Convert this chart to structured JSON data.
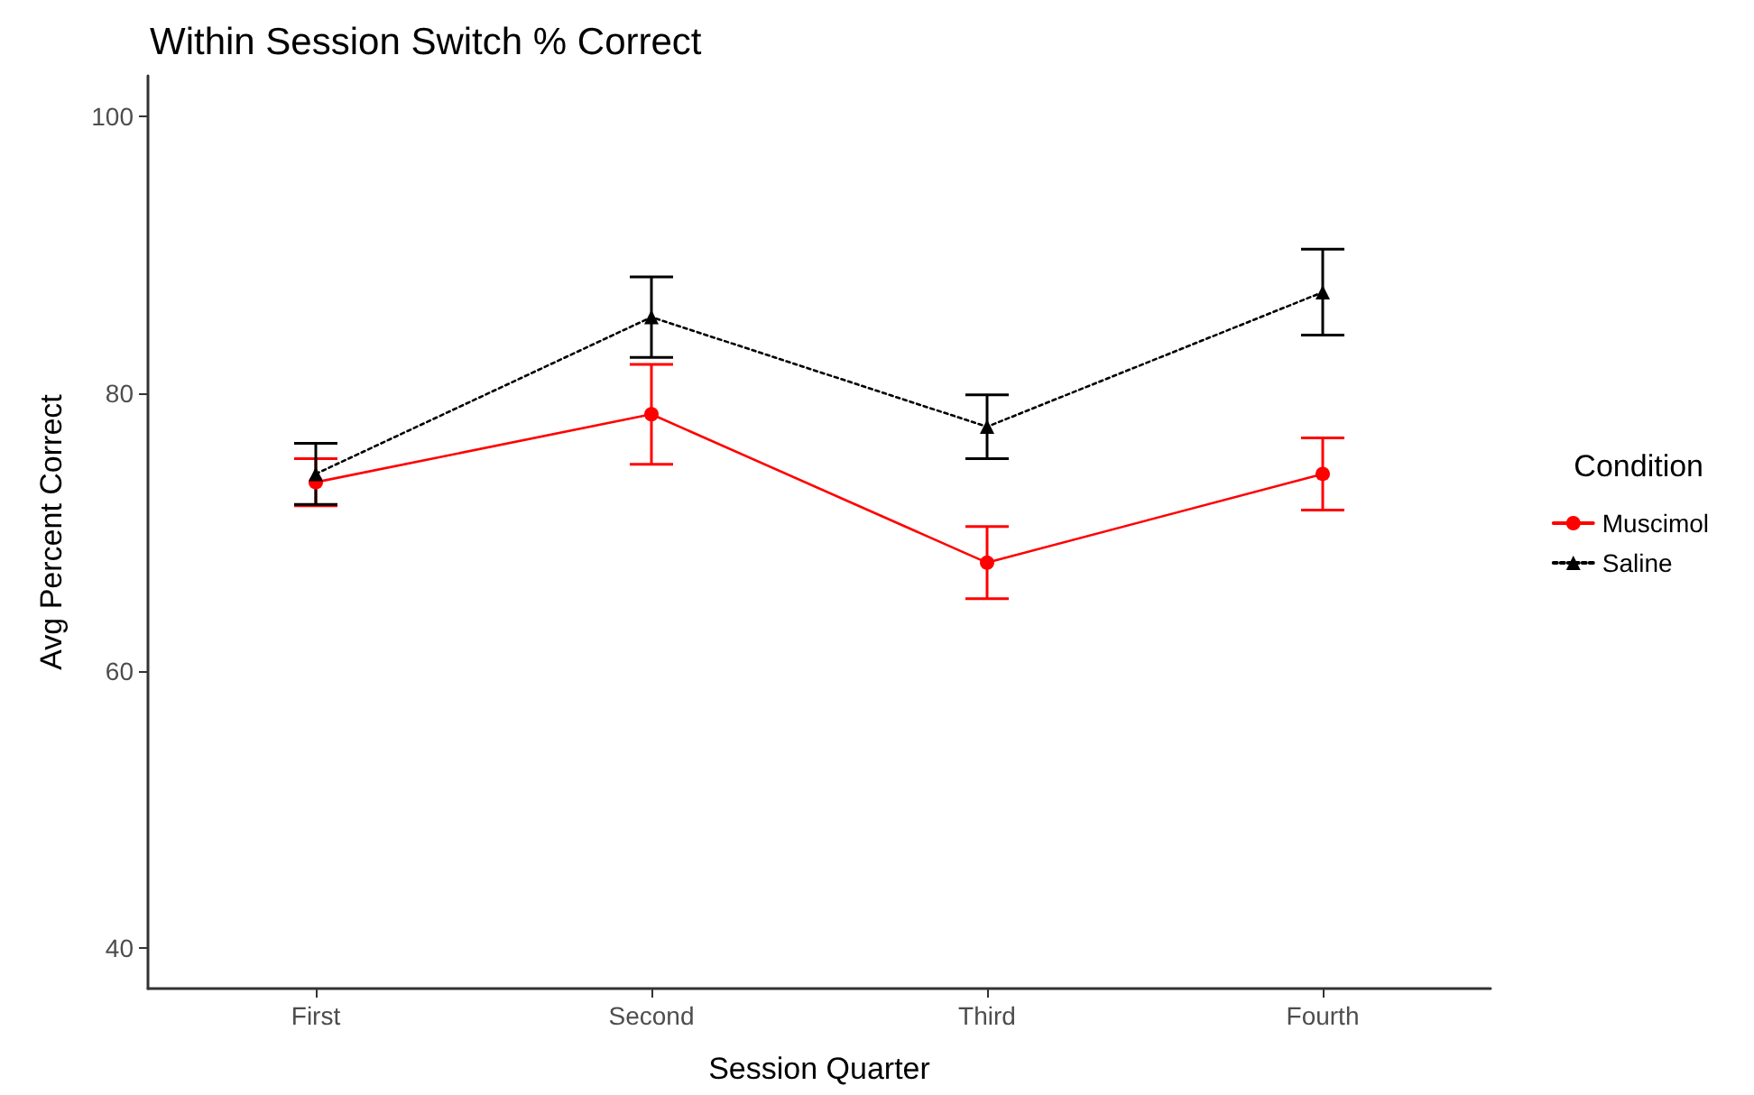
{
  "chart_data": {
    "type": "line",
    "title": "Within Session Switch % Correct",
    "xlabel": "Session Quarter",
    "ylabel": "Avg Percent Correct",
    "legend_title": "Condition",
    "categories": [
      "First",
      "Second",
      "Third",
      "Fourth"
    ],
    "series": [
      {
        "name": "Muscimol",
        "color": "#ff0000",
        "marker": "circle",
        "line_style": "solid",
        "values": [
          73.6,
          78.5,
          67.8,
          74.2
        ],
        "errors": [
          1.7,
          3.6,
          2.6,
          2.6
        ]
      },
      {
        "name": "Saline",
        "color": "#000000",
        "marker": "triangle",
        "line_style": "dotted",
        "values": [
          74.2,
          85.5,
          77.6,
          87.3
        ],
        "errors": [
          2.2,
          2.9,
          2.3,
          3.1
        ]
      }
    ],
    "ylim": [
      37.1,
      102.9
    ],
    "yticks": [
      40,
      60,
      80,
      100
    ],
    "grid": false,
    "legend": "right"
  }
}
